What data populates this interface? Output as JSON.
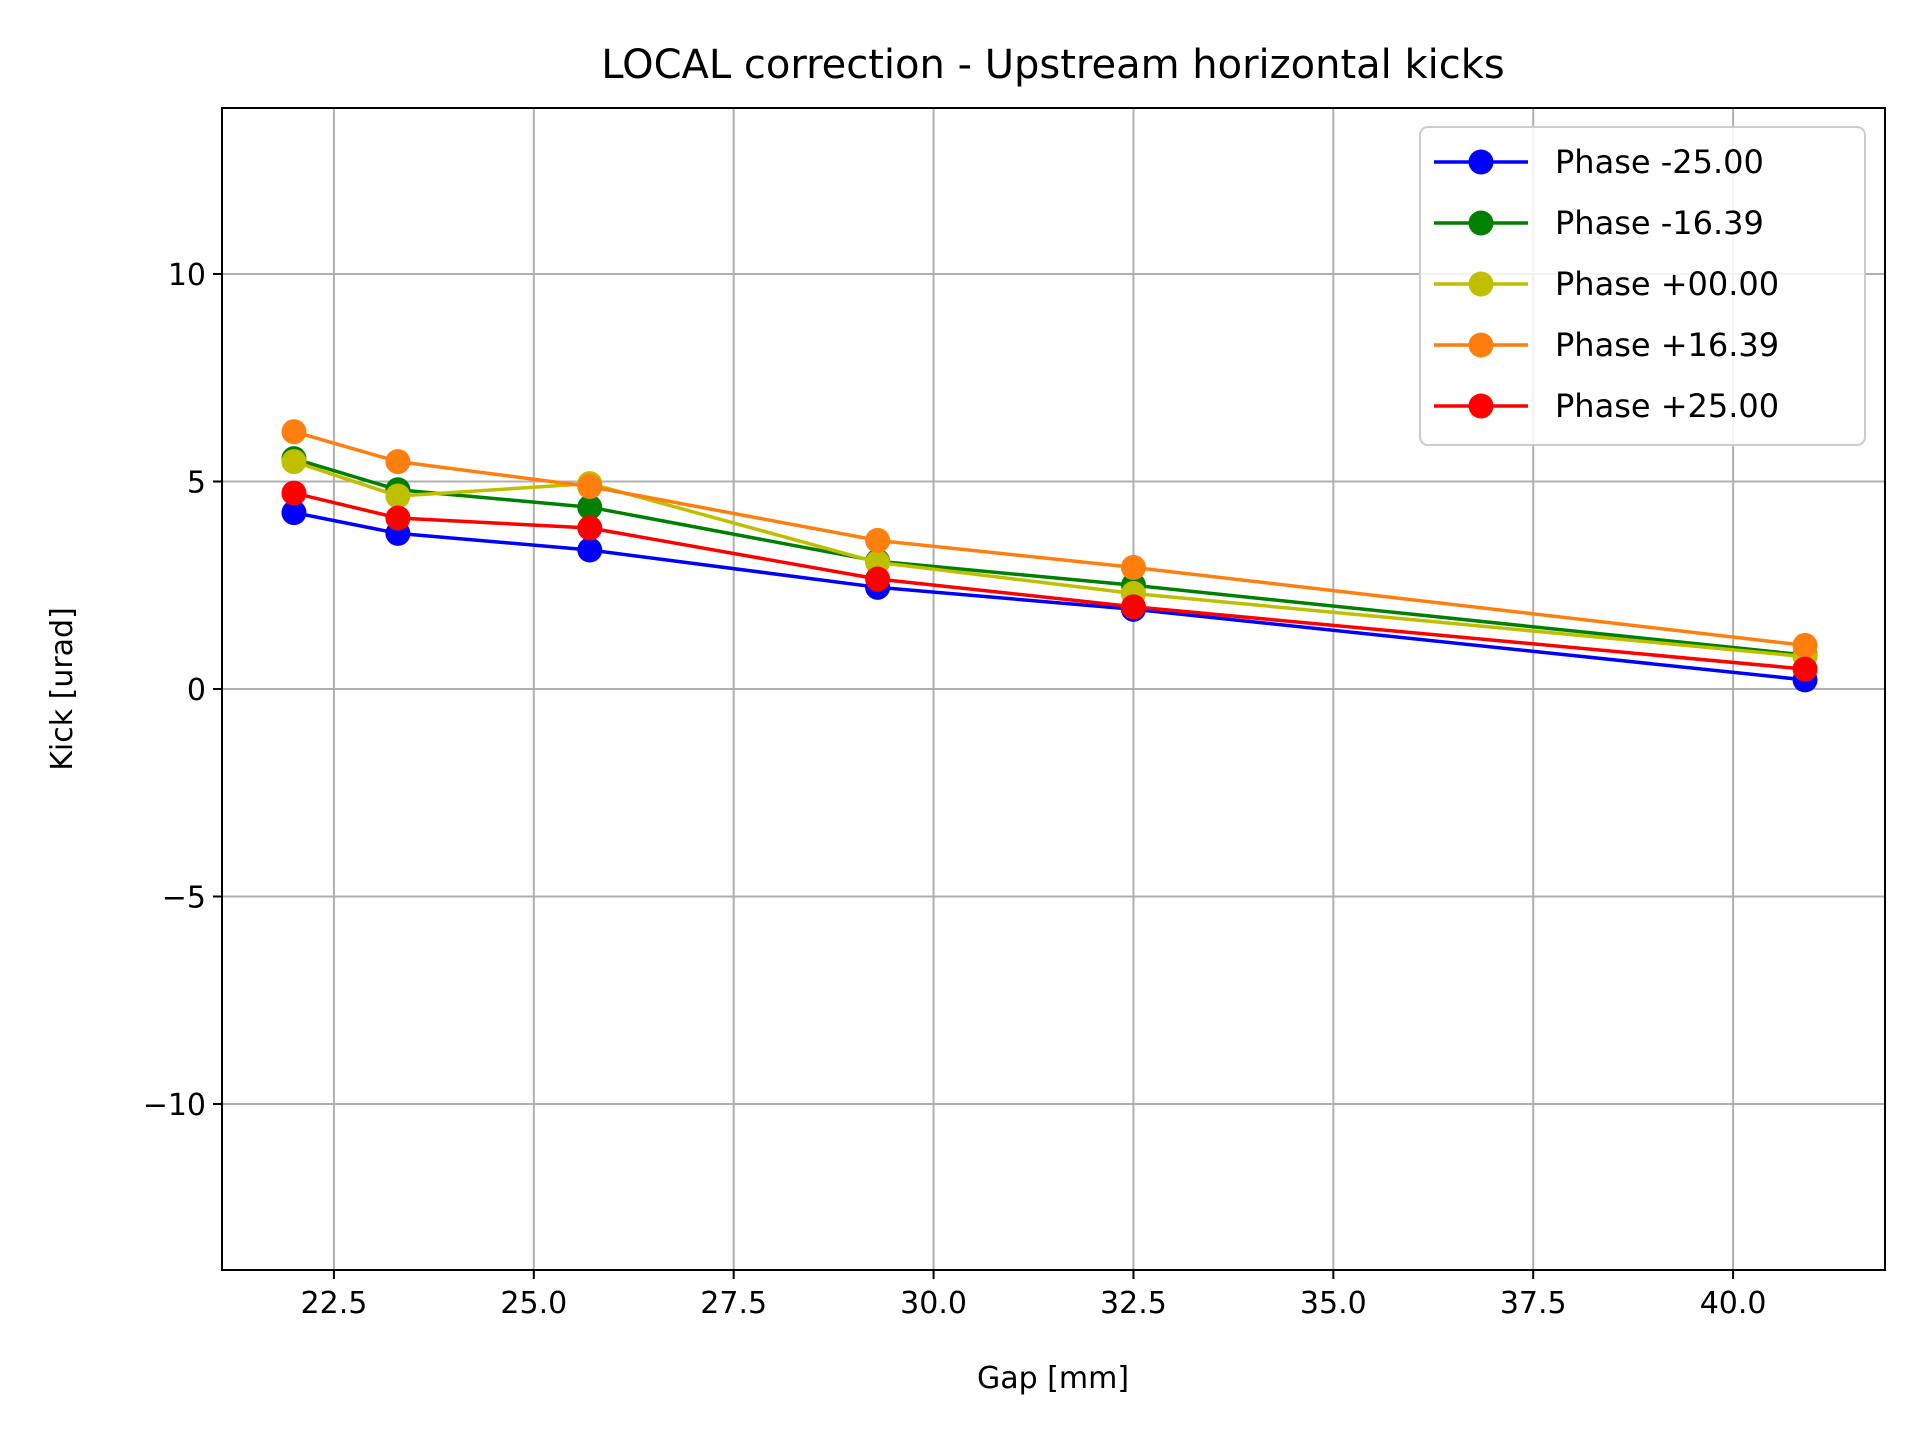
{
  "chart_data": {
    "type": "line",
    "title": "LOCAL correction - Upstream horizontal kicks",
    "xlabel": "Gap [mm]",
    "ylabel": "Kick [urad]",
    "xlim": [
      21.1,
      41.9
    ],
    "ylim": [
      -14,
      14
    ],
    "xticks": [
      22.5,
      25.0,
      27.5,
      30.0,
      32.5,
      35.0,
      37.5,
      40.0
    ],
    "xtick_labels": [
      "22.5",
      "25.0",
      "27.5",
      "30.0",
      "32.5",
      "35.0",
      "37.5",
      "40.0"
    ],
    "yticks": [
      -10,
      -5,
      0,
      5,
      10
    ],
    "ytick_labels": [
      "−10",
      "−5",
      "0",
      "5",
      "10"
    ],
    "grid": true,
    "legend_position": "top-right",
    "x": [
      22.0,
      23.3,
      25.7,
      29.3,
      32.5,
      40.9
    ],
    "series": [
      {
        "name": "Phase -25.00",
        "color": "#0000ff",
        "values": [
          4.25,
          3.75,
          3.35,
          2.45,
          1.92,
          0.22
        ]
      },
      {
        "name": "Phase -16.39",
        "color": "#008000",
        "values": [
          5.55,
          4.8,
          4.38,
          3.08,
          2.5,
          0.82
        ]
      },
      {
        "name": "Phase +00.00",
        "color": "#bfbf00",
        "values": [
          5.48,
          4.65,
          4.95,
          3.05,
          2.3,
          0.78
        ]
      },
      {
        "name": "Phase +16.39",
        "color": "#ff7f0e",
        "values": [
          6.2,
          5.48,
          4.88,
          3.58,
          2.93,
          1.05
        ]
      },
      {
        "name": "Phase +25.00",
        "color": "#ff0000",
        "values": [
          4.72,
          4.12,
          3.88,
          2.65,
          1.98,
          0.48
        ]
      }
    ]
  }
}
